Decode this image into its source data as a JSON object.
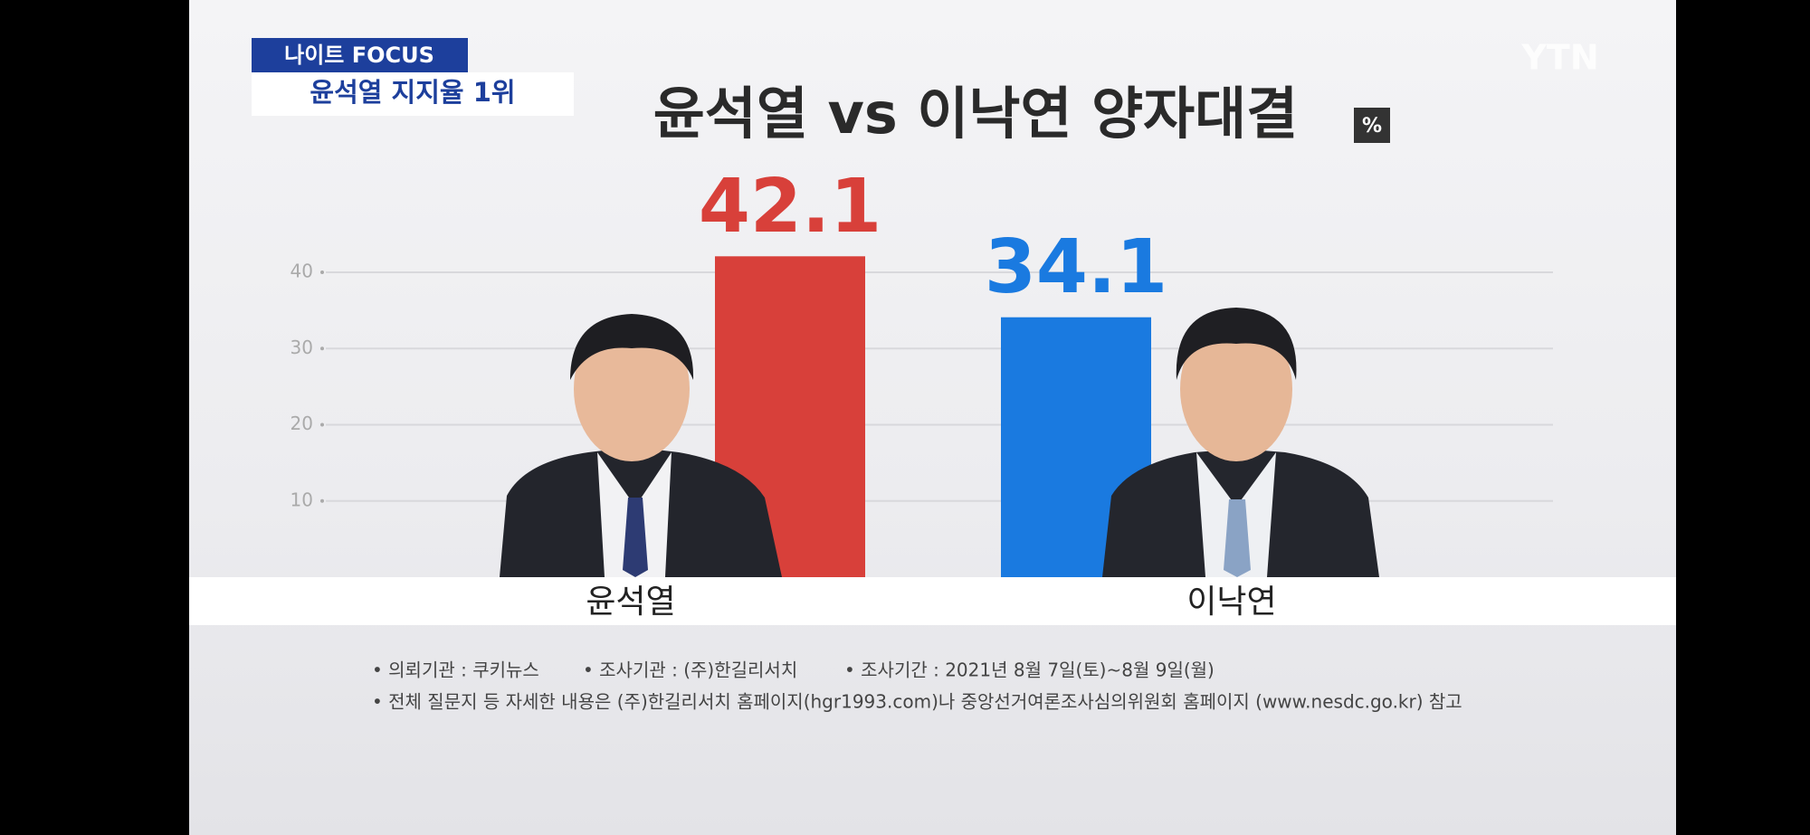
{
  "header": {
    "program": "나이트 FOCUS",
    "headline": "윤석열 지지율 1위"
  },
  "logo": "YTN",
  "chart_data": {
    "type": "bar",
    "title": "윤석열 vs 이낙연 양자대결",
    "unit": "%",
    "categories": [
      "윤석열",
      "이낙연"
    ],
    "values": [
      42.1,
      34.1
    ],
    "colors": [
      "#d8403a",
      "#1a7ae0"
    ],
    "ylim": [
      0,
      40
    ],
    "yticks": [
      10,
      20,
      30,
      40
    ],
    "grid": true
  },
  "notes": [
    "• 의뢰기관 : 쿠키뉴스",
    "• 조사기관 : (주)한길리서치",
    "• 조사기간 : 2021년 8월 7일(토)~8월 9일(월)",
    "• 전체 질문지 등 자세한 내용은 (주)한길리서치 홈페이지(hgr1993.com)나 중앙선거여론조사심의위원회 홈페이지 (www.nesdc.go.kr) 참고"
  ]
}
